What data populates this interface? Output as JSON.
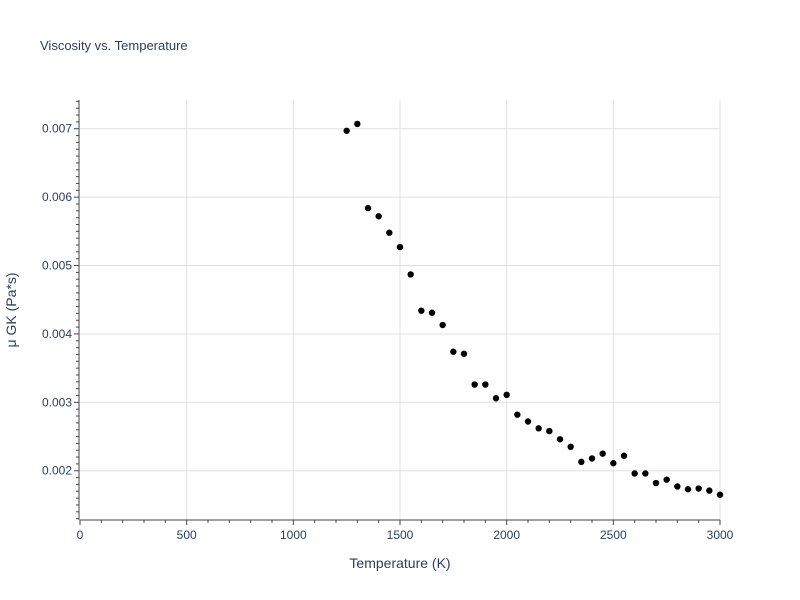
{
  "chart_data": {
    "type": "scatter",
    "title": "Viscosity vs. Temperature",
    "xlabel": "Temperature (K)",
    "ylabel": "μ GK (Pa*s)",
    "xlim": [
      0,
      3000
    ],
    "ylim": [
      0.00128,
      0.00742
    ],
    "x_ticks": [
      0,
      500,
      1000,
      1500,
      2000,
      2500,
      3000
    ],
    "x_tick_labels": [
      "0",
      "500",
      "1000",
      "1500",
      "2000",
      "2500",
      "3000"
    ],
    "y_ticks": [
      0.002,
      0.003,
      0.004,
      0.005,
      0.006,
      0.007
    ],
    "y_tick_labels": [
      "0.002",
      "0.003",
      "0.004",
      "0.005",
      "0.006",
      "0.007"
    ],
    "grid": true,
    "marker_color": "#000000",
    "grid_color": "#e0e0e0",
    "text_color": "#2a3f5f",
    "series": [
      {
        "x": [
          1250,
          1300,
          1350,
          1400,
          1450,
          1500,
          1550,
          1600,
          1650,
          1700,
          1750,
          1800,
          1850,
          1900,
          1950,
          2000,
          2050,
          2100,
          2150,
          2200,
          2250,
          2300,
          2350,
          2400,
          2450,
          2500,
          2550,
          2600,
          2650,
          2700,
          2750,
          2800,
          2850,
          2900,
          2950,
          3000
        ],
        "y": [
          0.00697,
          0.00707,
          0.00584,
          0.00572,
          0.00548,
          0.00527,
          0.00487,
          0.00434,
          0.00431,
          0.00413,
          0.00374,
          0.00371,
          0.00326,
          0.00326,
          0.00306,
          0.00311,
          0.00282,
          0.00272,
          0.00262,
          0.00258,
          0.00246,
          0.00235,
          0.00213,
          0.00218,
          0.00225,
          0.00211,
          0.00222,
          0.00196,
          0.00196,
          0.00182,
          0.00187,
          0.00177,
          0.00173,
          0.00174,
          0.00171,
          0.00165
        ]
      }
    ]
  }
}
